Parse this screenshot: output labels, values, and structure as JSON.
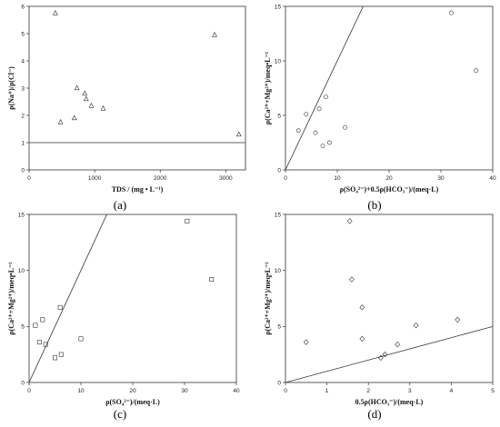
{
  "chart_data": [
    {
      "type": "scatter",
      "caption": "(a)",
      "xlabel": "TDS / (mg • L⁻¹)",
      "ylabel": "ρ(Na⁺)/ρ(Cl⁻)",
      "xlim": [
        0,
        3300
      ],
      "ylim": [
        0,
        6
      ],
      "xticks": [
        0,
        1000,
        2000,
        3000
      ],
      "yticks": [
        0,
        1,
        2,
        3,
        4,
        5,
        6
      ],
      "marker": "triangle",
      "points": [
        {
          "x": 400,
          "y": 5.75
        },
        {
          "x": 480,
          "y": 1.75
        },
        {
          "x": 690,
          "y": 1.9
        },
        {
          "x": 730,
          "y": 3.0
        },
        {
          "x": 850,
          "y": 2.8
        },
        {
          "x": 870,
          "y": 2.6
        },
        {
          "x": 950,
          "y": 2.35
        },
        {
          "x": 1130,
          "y": 2.25
        },
        {
          "x": 2830,
          "y": 4.95
        },
        {
          "x": 3200,
          "y": 1.3
        }
      ],
      "line": [
        {
          "x": 0,
          "y": 1
        },
        {
          "x": 3300,
          "y": 1
        }
      ]
    },
    {
      "type": "scatter",
      "caption": "(b)",
      "xlabel": "ρ(SO₄²⁻)+0.5ρ(HCO₃⁻)/(meq·L)",
      "ylabel": "ρ(Ca²⁺+Mg²⁺)/meq•L⁻¹",
      "xlim": [
        0,
        40
      ],
      "ylim": [
        0,
        15
      ],
      "xticks": [
        0,
        10,
        20,
        30,
        40
      ],
      "yticks": [
        0,
        5,
        10,
        15
      ],
      "marker": "circle",
      "points": [
        {
          "x": 2.5,
          "y": 3.6
        },
        {
          "x": 4.0,
          "y": 5.1
        },
        {
          "x": 5.8,
          "y": 3.4
        },
        {
          "x": 6.5,
          "y": 5.6
        },
        {
          "x": 7.2,
          "y": 2.2
        },
        {
          "x": 7.8,
          "y": 6.7
        },
        {
          "x": 8.5,
          "y": 2.5
        },
        {
          "x": 11.5,
          "y": 3.9
        },
        {
          "x": 32.0,
          "y": 14.4
        },
        {
          "x": 36.8,
          "y": 9.1
        }
      ],
      "line": [
        {
          "x": 0,
          "y": 0
        },
        {
          "x": 15,
          "y": 15
        }
      ]
    },
    {
      "type": "scatter",
      "caption": "(c)",
      "xlabel": "ρ(SO₄²⁻)/(meq·L)",
      "ylabel": "ρ(Ca²⁺+Mg²⁺)/meq•L⁻¹",
      "xlim": [
        0,
        40
      ],
      "ylim": [
        0,
        15
      ],
      "xticks": [
        0,
        10,
        20,
        30,
        40
      ],
      "yticks": [
        0,
        5,
        10,
        15
      ],
      "marker": "square",
      "points": [
        {
          "x": 1.2,
          "y": 5.1
        },
        {
          "x": 2.0,
          "y": 3.6
        },
        {
          "x": 2.6,
          "y": 5.6
        },
        {
          "x": 3.2,
          "y": 3.4
        },
        {
          "x": 5.0,
          "y": 2.2
        },
        {
          "x": 6.0,
          "y": 6.7
        },
        {
          "x": 6.2,
          "y": 2.5
        },
        {
          "x": 10.0,
          "y": 3.9
        },
        {
          "x": 30.5,
          "y": 14.4
        },
        {
          "x": 35.2,
          "y": 9.2
        }
      ],
      "line": [
        {
          "x": 0,
          "y": 0
        },
        {
          "x": 15,
          "y": 15
        }
      ]
    },
    {
      "type": "scatter",
      "caption": "(d)",
      "xlabel": "0.5ρ(HCO₃⁻)/(meq·L)",
      "ylabel": "ρ(Ca²⁺+Mg²⁺)/meq•L⁻¹",
      "xlim": [
        0,
        5
      ],
      "ylim": [
        0,
        15
      ],
      "xticks": [
        0,
        1,
        2,
        3,
        4,
        5
      ],
      "yticks": [
        0,
        5,
        10,
        15
      ],
      "marker": "diamond",
      "points": [
        {
          "x": 0.5,
          "y": 3.6
        },
        {
          "x": 1.55,
          "y": 14.4
        },
        {
          "x": 1.6,
          "y": 9.2
        },
        {
          "x": 1.85,
          "y": 3.9
        },
        {
          "x": 1.85,
          "y": 6.7
        },
        {
          "x": 2.3,
          "y": 2.2
        },
        {
          "x": 2.4,
          "y": 2.5
        },
        {
          "x": 2.7,
          "y": 3.4
        },
        {
          "x": 3.15,
          "y": 5.1
        },
        {
          "x": 4.15,
          "y": 5.6
        }
      ],
      "line": [
        {
          "x": 0,
          "y": 0
        },
        {
          "x": 5,
          "y": 5
        }
      ]
    }
  ]
}
